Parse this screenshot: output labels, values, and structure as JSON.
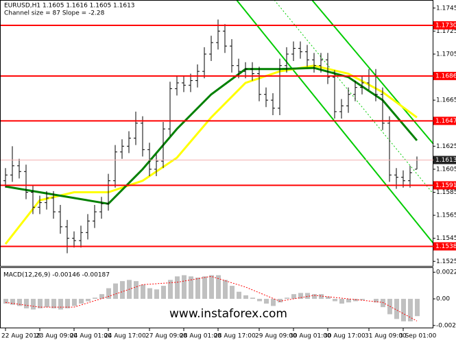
{
  "chart_data": [
    {
      "type": "ohlc",
      "title": "EURUSD,H1  1.1605 1.1616 1.1605 1.1613",
      "subtitle": "Channel size = 87 Slope = -2.28",
      "watermark": "www.instaforex.com",
      "color": "#000000",
      "open": [
        1.1595,
        1.16,
        1.1608,
        1.1603,
        1.1585,
        1.1572,
        1.1576,
        1.158,
        1.1568,
        1.1555,
        1.1545,
        1.1543,
        1.155,
        1.156,
        1.1568,
        1.1575,
        1.1595,
        1.162,
        1.1625,
        1.1632,
        1.1645,
        1.1622,
        1.1605,
        1.1612,
        1.164,
        1.1675,
        1.168,
        1.1678,
        1.1682,
        1.169,
        1.1705,
        1.1715,
        1.1725,
        1.1712,
        1.1695,
        1.169,
        1.1692,
        1.1688,
        1.167,
        1.1665,
        1.1658,
        1.1695,
        1.1705,
        1.171,
        1.1707,
        1.17,
        1.1695,
        1.17,
        1.1685,
        1.1655,
        1.166,
        1.167,
        1.1676,
        1.168,
        1.1686,
        1.167,
        1.1645,
        1.16,
        1.1598,
        1.1595,
        1.1605
      ],
      "high": [
        1.1606,
        1.1625,
        1.1614,
        1.1609,
        1.1591,
        1.1582,
        1.1586,
        1.1586,
        1.1574,
        1.1561,
        1.1551,
        1.1556,
        1.1566,
        1.1574,
        1.1581,
        1.1601,
        1.1626,
        1.1631,
        1.1638,
        1.1655,
        1.1651,
        1.1628,
        1.1618,
        1.1646,
        1.1681,
        1.1686,
        1.1686,
        1.1688,
        1.1696,
        1.1711,
        1.1721,
        1.1735,
        1.1731,
        1.1718,
        1.1701,
        1.1698,
        1.1698,
        1.1694,
        1.1676,
        1.1671,
        1.1701,
        1.1711,
        1.1716,
        1.1716,
        1.1713,
        1.1706,
        1.1706,
        1.1706,
        1.1691,
        1.1666,
        1.1676,
        1.1682,
        1.1686,
        1.1692,
        1.1692,
        1.1676,
        1.1651,
        1.1606,
        1.1604,
        1.1608,
        1.1616
      ],
      "low": [
        1.1589,
        1.1594,
        1.1597,
        1.1579,
        1.1566,
        1.1566,
        1.157,
        1.1562,
        1.1549,
        1.1532,
        1.1537,
        1.1537,
        1.1544,
        1.1554,
        1.1562,
        1.1569,
        1.1589,
        1.1614,
        1.1619,
        1.1626,
        1.1616,
        1.1599,
        1.1599,
        1.1606,
        1.1634,
        1.1669,
        1.1672,
        1.1672,
        1.1676,
        1.1684,
        1.1699,
        1.1709,
        1.1706,
        1.1689,
        1.1684,
        1.1684,
        1.1682,
        1.1664,
        1.1659,
        1.1652,
        1.1652,
        1.1689,
        1.1699,
        1.1701,
        1.1694,
        1.1689,
        1.1689,
        1.1679,
        1.1649,
        1.1649,
        1.1654,
        1.1664,
        1.167,
        1.1674,
        1.1664,
        1.1639,
        1.1594,
        1.1588,
        1.1589,
        1.1589,
        1.1605
      ],
      "close": [
        1.16,
        1.1608,
        1.1603,
        1.1585,
        1.1572,
        1.1576,
        1.158,
        1.1568,
        1.1555,
        1.1545,
        1.1543,
        1.155,
        1.156,
        1.1568,
        1.1575,
        1.1595,
        1.162,
        1.1625,
        1.1632,
        1.1645,
        1.1622,
        1.1605,
        1.1612,
        1.164,
        1.1675,
        1.168,
        1.1678,
        1.1682,
        1.169,
        1.1705,
        1.1715,
        1.1725,
        1.1712,
        1.1695,
        1.169,
        1.1692,
        1.1688,
        1.167,
        1.1665,
        1.1658,
        1.1695,
        1.1705,
        1.171,
        1.1707,
        1.17,
        1.1695,
        1.17,
        1.1685,
        1.1655,
        1.166,
        1.167,
        1.1676,
        1.168,
        1.1686,
        1.167,
        1.1645,
        1.16,
        1.1598,
        1.1595,
        1.1602,
        1.1613
      ],
      "moving_averages": [
        {
          "color": "#ffff00",
          "x": [
            0,
            5,
            10,
            15,
            20,
            25,
            30,
            35,
            40,
            45,
            50,
            55,
            60
          ],
          "values": [
            1.154,
            1.1578,
            1.1585,
            1.1585,
            1.1595,
            1.1615,
            1.165,
            1.168,
            1.169,
            1.1695,
            1.1688,
            1.1672,
            1.165
          ]
        },
        {
          "color": "#008000",
          "x": [
            0,
            5,
            10,
            15,
            20,
            25,
            30,
            35,
            40,
            45,
            50,
            55,
            60
          ],
          "values": [
            1.159,
            1.1585,
            1.158,
            1.1575,
            1.1605,
            1.164,
            1.167,
            1.1692,
            1.1692,
            1.1693,
            1.1685,
            1.1665,
            1.163
          ]
        }
      ],
      "levels": [
        {
          "value": 1.173,
          "label": "1.1730"
        },
        {
          "value": 1.1686,
          "label": "1.1686"
        },
        {
          "value": 1.1647,
          "label": "1.1647"
        },
        {
          "value": 1.1591,
          "label": "1.1591"
        },
        {
          "value": 1.1538,
          "label": "1.1538"
        }
      ],
      "level_color": "#ff0000",
      "last_price": 1.1613,
      "ylim": [
        1.1521,
        1.1752
      ],
      "yticks": [
        1.1745,
        1.1725,
        1.1705,
        1.1665,
        1.1625,
        1.1605,
        1.1585,
        1.1565,
        1.1545,
        1.1525
      ],
      "xticks": [
        {
          "value": 0,
          "label": "22 Aug 2018"
        },
        {
          "value": 5,
          "label": "23 Aug 09:00"
        },
        {
          "value": 10,
          "label": "24 Aug 01:00"
        },
        {
          "value": 15,
          "label": "24 Aug 17:00"
        },
        {
          "value": 21,
          "label": "27 Aug 09:00"
        },
        {
          "value": 26,
          "label": "28 Aug 01:00"
        },
        {
          "value": 31,
          "label": "28 Aug 17:00"
        },
        {
          "value": 37,
          "label": "29 Aug 09:00"
        },
        {
          "value": 42,
          "label": "30 Aug 01:00"
        },
        {
          "value": 47,
          "label": "30 Aug 17:00"
        },
        {
          "value": 53,
          "label": "31 Aug 09:00"
        },
        {
          "value": 58,
          "label": "3 Sep 01:00"
        }
      ]
    },
    {
      "type": "macd",
      "title": "MACD(12,26,9) -0.00146 -0.00187",
      "color": "#c0c0c0",
      "values": [
        -0.0004,
        -0.0005,
        -0.0006,
        -0.0008,
        -0.0009,
        -0.0008,
        -0.0007,
        -0.0008,
        -0.0009,
        -0.0008,
        -0.0006,
        -0.0004,
        -0.0002,
        0.0001,
        0.0004,
        0.0009,
        0.0013,
        0.0015,
        0.0016,
        0.0015,
        0.0012,
        0.0009,
        0.0008,
        0.0011,
        0.0016,
        0.0019,
        0.002,
        0.0019,
        0.0018,
        0.0019,
        0.002,
        0.002,
        0.0016,
        0.0011,
        0.0006,
        0.0003,
        0.0001,
        -0.0002,
        -0.0004,
        -0.0006,
        -0.0003,
        0.0001,
        0.0004,
        0.0005,
        0.0005,
        0.0004,
        0.0004,
        0.0002,
        -0.0002,
        -0.0004,
        -0.0003,
        -0.0002,
        -0.0001,
        0,
        -0.0003,
        -0.0007,
        -0.0013,
        -0.0017,
        -0.0019,
        -0.0019,
        -0.00146
      ],
      "signal": {
        "color": "#ff0000",
        "x": [
          0,
          5,
          10,
          15,
          20,
          25,
          30,
          35,
          40,
          45,
          50,
          55,
          60
        ],
        "values": [
          -0.0003,
          -0.0007,
          -0.0007,
          0.0002,
          0.0012,
          0.0014,
          0.0019,
          0.001,
          -0.0002,
          0.0003,
          0,
          -0.0003,
          -0.00187
        ]
      },
      "ylim": [
        -0.00243,
        0.00261
      ],
      "yticks": [
        0.00225,
        {
          "value": 0,
          "label": "0.00"
        },
        -0.00225
      ]
    }
  ]
}
